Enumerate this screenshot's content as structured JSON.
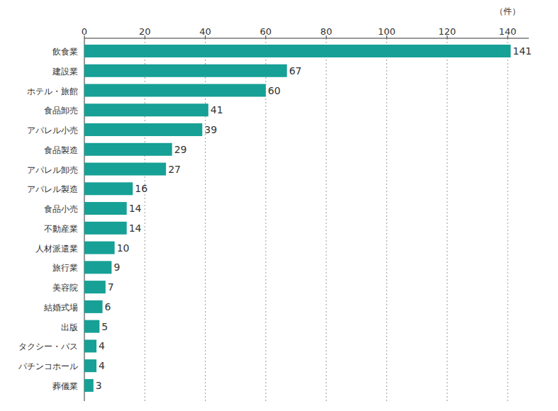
{
  "chart_data": {
    "type": "bar",
    "orientation": "horizontal",
    "xlabel": "（件）",
    "categories": [
      "飲食業",
      "建設業",
      "ホテル・旅館",
      "食品卸売",
      "アパレル小売",
      "食品製造",
      "アパレル卸売",
      "アパレル製造",
      "食品小売",
      "不動産業",
      "人材派遣業",
      "旅行業",
      "美容院",
      "結婚式場",
      "出版",
      "タクシー・バス",
      "パチンコホール",
      "葬儀業"
    ],
    "values": [
      141,
      67,
      60,
      41,
      39,
      29,
      27,
      16,
      14,
      14,
      10,
      9,
      7,
      6,
      5,
      4,
      4,
      3
    ],
    "color": "#16a096",
    "xlim": [
      0,
      147
    ],
    "xticks": [
      0,
      20,
      40,
      60,
      80,
      100,
      120,
      140
    ],
    "grid": true,
    "data_labels": true
  }
}
